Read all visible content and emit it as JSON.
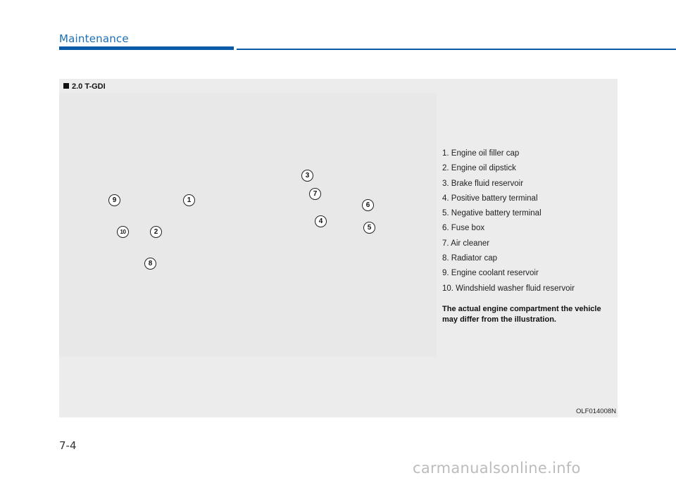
{
  "header": {
    "section_title": "Maintenance"
  },
  "figure": {
    "heading": "2.0 T-GDI",
    "callouts": [
      "1",
      "2",
      "3",
      "4",
      "5",
      "6",
      "7",
      "8",
      "9",
      "10"
    ],
    "legend": [
      "1. Engine oil filler cap",
      "2. Engine oil dipstick",
      "3. Brake fluid reservoir",
      "4. Positive battery terminal",
      "5. Negative battery terminal",
      "6. Fuse box",
      "7. Air cleaner",
      "8. Radiator cap",
      "9. Engine coolant reservoir",
      "10. Windshield washer fluid reservoir"
    ],
    "note": "The actual engine compartment the vehicle may differ from the illustration.",
    "code": "OLF014008N"
  },
  "footer": {
    "page_number": "7-4",
    "watermark": "carmanualsonline.info"
  },
  "colors": {
    "accent": "#0a5aa8",
    "title": "#1a6fb5",
    "panel": "#ececec"
  }
}
